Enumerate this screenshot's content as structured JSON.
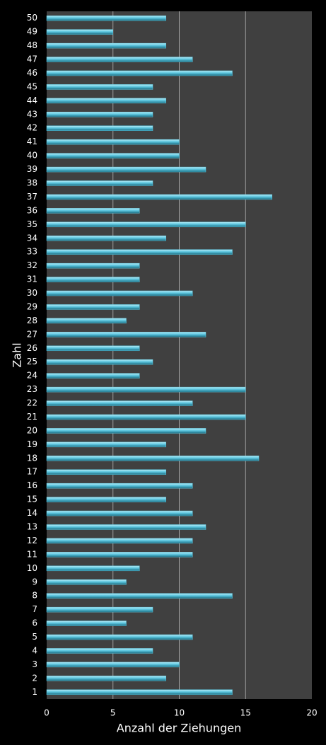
{
  "chart_data": {
    "type": "hbar",
    "xlabel": "Anzahl der Ziehungen",
    "ylabel": "Zahl",
    "categories": [
      "1",
      "2",
      "3",
      "4",
      "5",
      "6",
      "7",
      "8",
      "9",
      "10",
      "11",
      "12",
      "13",
      "14",
      "15",
      "16",
      "17",
      "18",
      "19",
      "20",
      "21",
      "22",
      "23",
      "24",
      "25",
      "26",
      "27",
      "28",
      "29",
      "30",
      "31",
      "32",
      "33",
      "34",
      "35",
      "36",
      "37",
      "38",
      "39",
      "40",
      "41",
      "42",
      "43",
      "44",
      "45",
      "46",
      "47",
      "48",
      "49",
      "50"
    ],
    "values": [
      14,
      9,
      10,
      8,
      11,
      6,
      8,
      14,
      6,
      7,
      11,
      11,
      12,
      11,
      9,
      11,
      9,
      16,
      9,
      12,
      15,
      11,
      15,
      7,
      8,
      7,
      12,
      6,
      7,
      11,
      7,
      7,
      14,
      9,
      15,
      7,
      17,
      8,
      12,
      10,
      10,
      8,
      8,
      9,
      8,
      14,
      11,
      9,
      5,
      9
    ],
    "color": "#5cc6df",
    "xlim": [
      0,
      20
    ],
    "xticks": [
      0,
      5,
      10,
      15,
      20
    ],
    "grid": true
  }
}
